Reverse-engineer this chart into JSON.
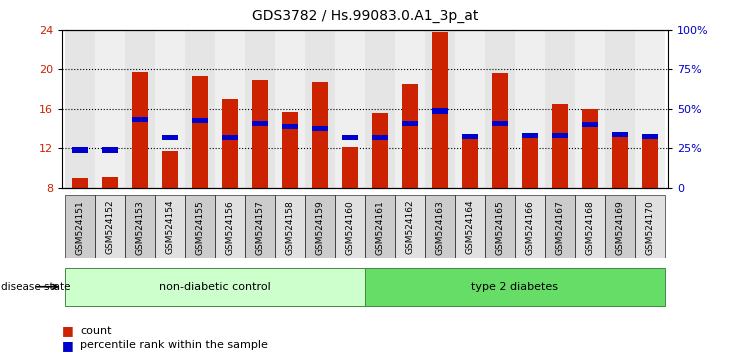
{
  "title": "GDS3782 / Hs.99083.0.A1_3p_at",
  "samples": [
    "GSM524151",
    "GSM524152",
    "GSM524153",
    "GSM524154",
    "GSM524155",
    "GSM524156",
    "GSM524157",
    "GSM524158",
    "GSM524159",
    "GSM524160",
    "GSM524161",
    "GSM524162",
    "GSM524163",
    "GSM524164",
    "GSM524165",
    "GSM524166",
    "GSM524167",
    "GSM524168",
    "GSM524169",
    "GSM524170"
  ],
  "count_values": [
    9.0,
    9.1,
    19.7,
    11.7,
    19.3,
    17.0,
    18.9,
    15.7,
    18.7,
    12.1,
    15.6,
    18.5,
    23.8,
    13.2,
    19.6,
    13.2,
    16.5,
    16.0,
    13.2,
    13.2
  ],
  "percentile_values": [
    11.8,
    11.8,
    14.9,
    13.1,
    14.8,
    13.1,
    14.5,
    14.2,
    14.0,
    13.1,
    13.1,
    14.5,
    15.8,
    13.2,
    14.5,
    13.3,
    13.3,
    14.4,
    13.4,
    13.2
  ],
  "count_color": "#cc2200",
  "percentile_color": "#0000cc",
  "ylim": [
    8,
    24
  ],
  "yticks_left": [
    8,
    12,
    16,
    20,
    24
  ],
  "yticks_right": [
    0,
    25,
    50,
    75,
    100
  ],
  "bar_width": 0.55,
  "group1_label": "non-diabetic control",
  "group2_label": "type 2 diabetes",
  "group1_color": "#ccffcc",
  "group2_color": "#66dd66",
  "disease_state_label": "disease state",
  "legend_count": "count",
  "legend_pct": "percentile rank within the sample",
  "tick_label_color_left": "#cc2200",
  "tick_label_color_right": "#0000cc",
  "col_bg_even": "#cccccc",
  "col_bg_odd": "#e0e0e0"
}
